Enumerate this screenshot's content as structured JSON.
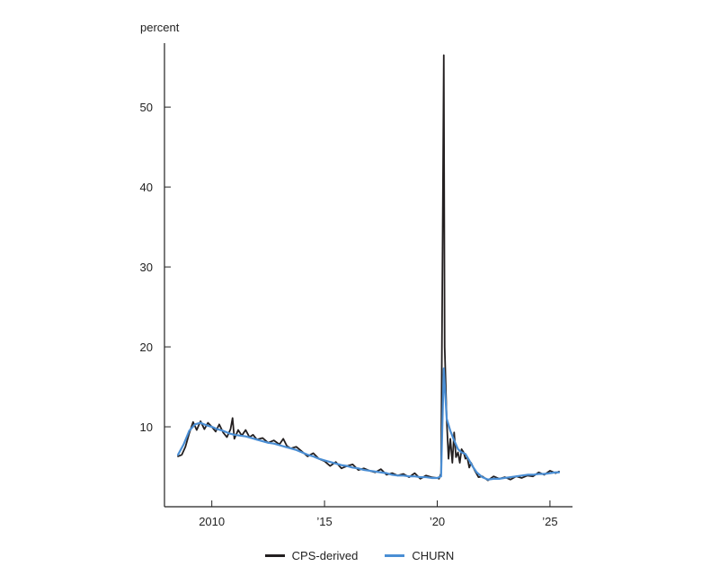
{
  "chart_data": {
    "type": "line",
    "title": "",
    "xlabel": "",
    "ylabel": "percent",
    "ylim": [
      0,
      58
    ],
    "xlim": [
      2007.9,
      2026.0
    ],
    "yticks": [
      10,
      20,
      30,
      40,
      50
    ],
    "xticks": [
      {
        "value": 2010,
        "label": "2010"
      },
      {
        "value": 2015,
        "label": "’15"
      },
      {
        "value": 2020,
        "label": "’20"
      },
      {
        "value": 2025,
        "label": "’25"
      }
    ],
    "grid": false,
    "legend_position": "bottom",
    "series": [
      {
        "name": "CPS-derived",
        "color": "#231f20",
        "x": [
          2008.5,
          2008.67,
          2008.83,
          2009.0,
          2009.17,
          2009.33,
          2009.5,
          2009.67,
          2009.83,
          2010.0,
          2010.17,
          2010.33,
          2010.5,
          2010.67,
          2010.83,
          2010.92,
          2011.0,
          2011.17,
          2011.33,
          2011.5,
          2011.67,
          2011.83,
          2012.0,
          2012.25,
          2012.5,
          2012.75,
          2013.0,
          2013.17,
          2013.33,
          2013.5,
          2013.75,
          2014.0,
          2014.25,
          2014.5,
          2014.75,
          2015.0,
          2015.25,
          2015.5,
          2015.75,
          2016.0,
          2016.25,
          2016.5,
          2016.75,
          2017.0,
          2017.25,
          2017.5,
          2017.75,
          2018.0,
          2018.25,
          2018.5,
          2018.75,
          2019.0,
          2019.25,
          2019.5,
          2019.75,
          2020.0,
          2020.08,
          2020.17,
          2020.25,
          2020.29,
          2020.33,
          2020.42,
          2020.5,
          2020.58,
          2020.67,
          2020.75,
          2020.83,
          2020.92,
          2021.0,
          2021.08,
          2021.17,
          2021.25,
          2021.33,
          2021.42,
          2021.5,
          2021.67,
          2021.83,
          2022.0,
          2022.25,
          2022.5,
          2022.75,
          2023.0,
          2023.25,
          2023.5,
          2023.75,
          2024.0,
          2024.25,
          2024.5,
          2024.75,
          2025.0,
          2025.25,
          2025.4
        ],
        "values": [
          6.3,
          6.5,
          7.5,
          9.2,
          10.6,
          9.6,
          10.7,
          9.7,
          10.5,
          10.0,
          9.4,
          10.3,
          9.3,
          8.7,
          9.7,
          11.1,
          8.5,
          9.6,
          8.9,
          9.6,
          8.7,
          9.0,
          8.4,
          8.6,
          8.0,
          8.3,
          7.8,
          8.5,
          7.6,
          7.3,
          7.5,
          6.9,
          6.3,
          6.7,
          6.0,
          5.7,
          5.1,
          5.6,
          4.8,
          5.1,
          5.3,
          4.6,
          4.8,
          4.5,
          4.3,
          4.7,
          4.0,
          4.2,
          3.9,
          4.1,
          3.7,
          4.2,
          3.5,
          3.9,
          3.7,
          3.6,
          3.5,
          4.2,
          38.5,
          56.5,
          20.0,
          10.8,
          6.0,
          8.5,
          5.5,
          9.3,
          6.2,
          6.8,
          5.5,
          7.2,
          6.8,
          6.0,
          6.2,
          4.9,
          5.5,
          4.5,
          3.7,
          3.8,
          3.3,
          3.8,
          3.5,
          3.7,
          3.4,
          3.8,
          3.6,
          3.9,
          3.8,
          4.3,
          4.0,
          4.5,
          4.2,
          4.4
        ]
      },
      {
        "name": "CHURN",
        "color": "#4a8ed4",
        "x": [
          2008.5,
          2008.75,
          2009.0,
          2009.25,
          2009.5,
          2009.75,
          2010.0,
          2010.25,
          2010.5,
          2010.75,
          2011.0,
          2011.25,
          2011.5,
          2011.75,
          2012.0,
          2012.25,
          2012.5,
          2012.75,
          2013.0,
          2013.25,
          2013.5,
          2013.75,
          2014.0,
          2014.25,
          2014.5,
          2014.75,
          2015.0,
          2015.25,
          2015.5,
          2015.75,
          2016.0,
          2016.25,
          2016.5,
          2016.75,
          2017.0,
          2017.25,
          2017.5,
          2017.75,
          2018.0,
          2018.25,
          2018.5,
          2018.75,
          2019.0,
          2019.25,
          2019.5,
          2019.75,
          2020.0,
          2020.17,
          2020.29,
          2020.42,
          2020.58,
          2020.75,
          2020.92,
          2021.08,
          2021.25,
          2021.42,
          2021.58,
          2021.75,
          2022.0,
          2022.25,
          2022.5,
          2022.75,
          2023.0,
          2023.25,
          2023.5,
          2023.75,
          2024.0,
          2024.25,
          2024.5,
          2024.75,
          2025.0,
          2025.25,
          2025.4
        ],
        "values": [
          6.5,
          7.8,
          9.5,
          10.3,
          10.5,
          10.2,
          10.0,
          9.7,
          9.5,
          9.2,
          9.0,
          8.9,
          8.8,
          8.6,
          8.4,
          8.2,
          8.0,
          7.9,
          7.7,
          7.5,
          7.3,
          7.1,
          6.8,
          6.5,
          6.3,
          6.0,
          5.8,
          5.6,
          5.4,
          5.2,
          5.1,
          4.9,
          4.8,
          4.6,
          4.5,
          4.4,
          4.3,
          4.2,
          4.0,
          3.9,
          3.9,
          3.8,
          3.8,
          3.7,
          3.7,
          3.6,
          3.6,
          3.8,
          17.3,
          11.0,
          9.5,
          8.3,
          7.2,
          6.8,
          6.6,
          5.8,
          5.0,
          4.3,
          3.7,
          3.4,
          3.5,
          3.5,
          3.6,
          3.7,
          3.8,
          3.9,
          4.0,
          4.0,
          4.1,
          4.1,
          4.2,
          4.3,
          4.3
        ]
      }
    ]
  },
  "legend": {
    "items": [
      {
        "label": "CPS-derived",
        "color": "#231f20"
      },
      {
        "label": "CHURN",
        "color": "#4a8ed4"
      }
    ]
  }
}
